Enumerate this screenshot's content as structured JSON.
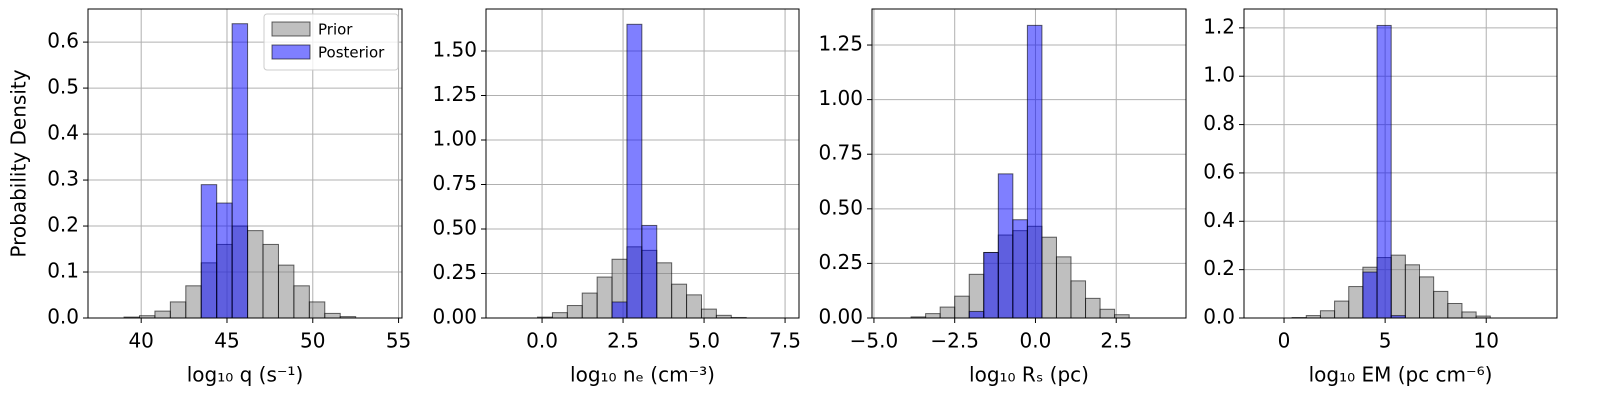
{
  "chart_data": [
    {
      "type": "histogram",
      "xlabel": "log₁₀ q (s⁻¹)",
      "ylabel": "Probability Density",
      "legend": "upper right",
      "grid": true,
      "alpha": 0.5,
      "xlim": [
        36.9,
        55.2
      ],
      "xticks": [
        40,
        45,
        50,
        55
      ],
      "ylim": [
        0,
        0.672
      ],
      "yticks": [
        {
          "value": 0,
          "label": "0.0"
        },
        {
          "value": 0.1,
          "label": "0.1"
        },
        {
          "value": 0.2,
          "label": "0.2"
        },
        {
          "value": 0.3,
          "label": "0.3"
        },
        {
          "value": 0.4,
          "label": "0.4"
        },
        {
          "value": 0.5,
          "label": "0.5"
        },
        {
          "value": 0.6,
          "label": "0.6"
        }
      ],
      "series": [
        {
          "name": "Prior",
          "color": "#808080",
          "bins": [
            39.0,
            39.9,
            40.8,
            41.7,
            42.6,
            43.5,
            44.4,
            45.3,
            46.2,
            47.1,
            48.0,
            48.9,
            49.8,
            50.7,
            51.6,
            52.5
          ],
          "values": [
            0.002,
            0.005,
            0.015,
            0.035,
            0.07,
            0.12,
            0.16,
            0.2,
            0.19,
            0.16,
            0.115,
            0.07,
            0.035,
            0.01,
            0.003
          ]
        },
        {
          "name": "Posterior",
          "color": "#0000ff",
          "bins": [
            43.5,
            44.4,
            45.3,
            46.2
          ],
          "values": [
            0.29,
            0.25,
            0.64
          ]
        }
      ]
    },
    {
      "type": "histogram",
      "xlabel": "log₁₀ nₑ (cm⁻³)",
      "grid": true,
      "alpha": 0.5,
      "xlim": [
        -1.73,
        7.93
      ],
      "xticks": [
        {
          "value": 0,
          "label": "0.0"
        },
        {
          "value": 2.5,
          "label": "2.5"
        },
        {
          "value": 5,
          "label": "5.0"
        },
        {
          "value": 7.5,
          "label": "7.5"
        }
      ],
      "ylim": [
        0,
        1.736
      ],
      "yticks": [
        {
          "value": 0,
          "label": "0.00"
        },
        {
          "value": 0.25,
          "label": "0.25"
        },
        {
          "value": 0.5,
          "label": "0.50"
        },
        {
          "value": 0.75,
          "label": "0.75"
        },
        {
          "value": 1,
          "label": "1.00"
        },
        {
          "value": 1.25,
          "label": "1.25"
        },
        {
          "value": 1.5,
          "label": "1.50"
        }
      ],
      "series": [
        {
          "color": "#808080",
          "bins": [
            -0.14,
            0.32,
            0.78,
            1.24,
            1.7,
            2.16,
            2.62,
            3.08,
            3.54,
            4.0,
            4.46,
            4.92,
            5.38,
            5.84,
            6.3
          ],
          "values": [
            0.005,
            0.03,
            0.07,
            0.14,
            0.23,
            0.33,
            0.4,
            0.38,
            0.31,
            0.19,
            0.13,
            0.05,
            0.015,
            0.003
          ]
        },
        {
          "color": "#0000ff",
          "bins": [
            2.16,
            2.62,
            3.08,
            3.54
          ],
          "values": [
            0.09,
            1.65,
            0.52
          ]
        }
      ]
    },
    {
      "type": "histogram",
      "xlabel": "log₁₀ Rₛ (pc)",
      "grid": true,
      "alpha": 0.5,
      "xlim": [
        -5.06,
        4.66
      ],
      "xticks": [
        {
          "value": -5,
          "label": "−5.0"
        },
        {
          "value": -2.5,
          "label": "−2.5"
        },
        {
          "value": 0,
          "label": "0.0"
        },
        {
          "value": 2.5,
          "label": "2.5"
        }
      ],
      "ylim": [
        0,
        1.415
      ],
      "yticks": [
        {
          "value": 0,
          "label": "0.00"
        },
        {
          "value": 0.25,
          "label": "0.25"
        },
        {
          "value": 0.5,
          "label": "0.50"
        },
        {
          "value": 0.75,
          "label": "0.75"
        },
        {
          "value": 1,
          "label": "1.00"
        },
        {
          "value": 1.25,
          "label": "1.25"
        }
      ],
      "series": [
        {
          "color": "#808080",
          "bins": [
            -3.85,
            -3.4,
            -2.95,
            -2.5,
            -2.05,
            -1.6,
            -1.15,
            -0.7,
            -0.25,
            0.2,
            0.65,
            1.1,
            1.55,
            2.0,
            2.45,
            2.9
          ],
          "values": [
            0.005,
            0.02,
            0.05,
            0.1,
            0.2,
            0.3,
            0.38,
            0.4,
            0.42,
            0.37,
            0.28,
            0.17,
            0.09,
            0.04,
            0.015
          ]
        },
        {
          "color": "#0000ff",
          "bins": [
            -2.05,
            -1.6,
            -1.15,
            -0.7,
            -0.25,
            0.2
          ],
          "values": [
            0.03,
            0.3,
            0.66,
            0.45,
            1.34
          ]
        }
      ]
    },
    {
      "type": "histogram",
      "xlabel": "log₁₀ EM (pc cm⁻⁶)",
      "grid": true,
      "alpha": 0.5,
      "xlim": [
        -1.98,
        13.5
      ],
      "xticks": [
        0,
        5,
        10
      ],
      "ylim": [
        0,
        1.278
      ],
      "yticks": [
        {
          "value": 0,
          "label": "0.0"
        },
        {
          "value": 0.2,
          "label": "0.2"
        },
        {
          "value": 0.4,
          "label": "0.4"
        },
        {
          "value": 0.6,
          "label": "0.6"
        },
        {
          "value": 0.8,
          "label": "0.8"
        },
        {
          "value": 1,
          "label": "1.0"
        },
        {
          "value": 1.2,
          "label": "1.2"
        }
      ],
      "series": [
        {
          "color": "#808080",
          "bins": [
            0.4,
            1.1,
            1.8,
            2.5,
            3.2,
            3.9,
            4.6,
            5.3,
            6.0,
            6.7,
            7.4,
            8.1,
            8.8,
            9.5,
            10.2
          ],
          "values": [
            0.002,
            0.01,
            0.03,
            0.07,
            0.13,
            0.21,
            0.25,
            0.26,
            0.22,
            0.17,
            0.11,
            0.06,
            0.025,
            0.008
          ]
        },
        {
          "color": "#0000ff",
          "bins": [
            3.9,
            4.6,
            5.3,
            6.0
          ],
          "values": [
            0.19,
            1.21,
            0.01
          ]
        }
      ]
    }
  ]
}
